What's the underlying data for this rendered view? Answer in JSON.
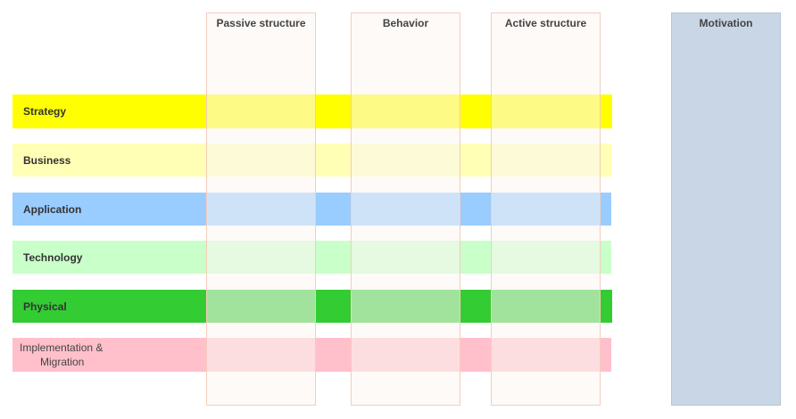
{
  "columns": [
    {
      "id": "passive-structure",
      "label": "Passive structure"
    },
    {
      "id": "behavior",
      "label": "Behavior"
    },
    {
      "id": "active-structure",
      "label": "Active structure"
    }
  ],
  "motivation": {
    "label": "Motivation",
    "color": "#c8d6e5"
  },
  "layers": [
    {
      "id": "strategy",
      "label": "Strategy",
      "color": "#ffff00"
    },
    {
      "id": "business",
      "label": "Business",
      "color": "#ffffb5"
    },
    {
      "id": "application",
      "label": "Application",
      "color": "#99ccff"
    },
    {
      "id": "technology",
      "label": "Technology",
      "color": "#c9ffc9"
    },
    {
      "id": "physical",
      "label": "Physical",
      "color": "#33cc33"
    },
    {
      "id": "implementation-migration",
      "label_line1": "Implementation &",
      "label_line2": "Migration",
      "color": "#ffc0cb"
    }
  ]
}
